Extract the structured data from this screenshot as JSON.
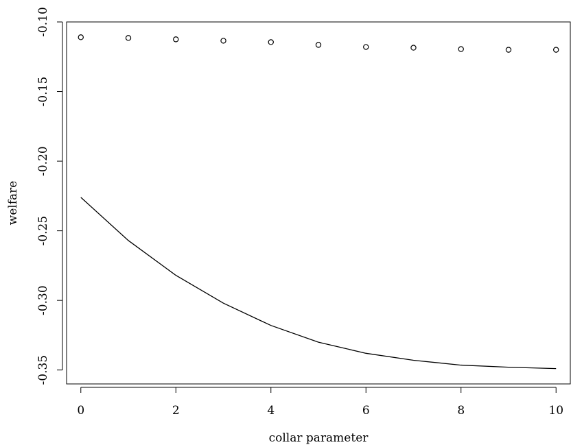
{
  "chart_data": {
    "type": "line",
    "title": "",
    "xlabel": "collar parameter",
    "ylabel": "welfare",
    "xlim": [
      -0.3,
      10.3
    ],
    "ylim": [
      -0.36,
      -0.1
    ],
    "x_ticks": [
      0,
      2,
      4,
      6,
      8,
      10
    ],
    "x_tick_labels": [
      "0",
      "2",
      "4",
      "6",
      "8",
      "10"
    ],
    "y_ticks": [
      -0.35,
      -0.3,
      -0.25,
      -0.2,
      -0.15,
      -0.1
    ],
    "y_tick_labels": [
      "-0.35",
      "-0.30",
      "-0.25",
      "-0.20",
      "-0.15",
      "-0.10"
    ],
    "grid": false,
    "legend": "none",
    "series": [
      {
        "style": "points",
        "marker": "open-circle",
        "color": "#000000",
        "x": [
          0,
          1,
          2,
          3,
          4,
          5,
          6,
          7,
          8,
          9,
          10
        ],
        "y": [
          -0.111,
          -0.1115,
          -0.1125,
          -0.1135,
          -0.1145,
          -0.1165,
          -0.118,
          -0.1185,
          -0.1195,
          -0.12,
          -0.12
        ]
      },
      {
        "style": "line",
        "color": "#000000",
        "x": [
          0,
          1,
          2,
          3,
          4,
          5,
          6,
          7,
          8,
          9,
          10
        ],
        "y": [
          -0.226,
          -0.257,
          -0.282,
          -0.302,
          -0.318,
          -0.33,
          -0.338,
          -0.343,
          -0.3465,
          -0.348,
          -0.349
        ]
      }
    ]
  }
}
